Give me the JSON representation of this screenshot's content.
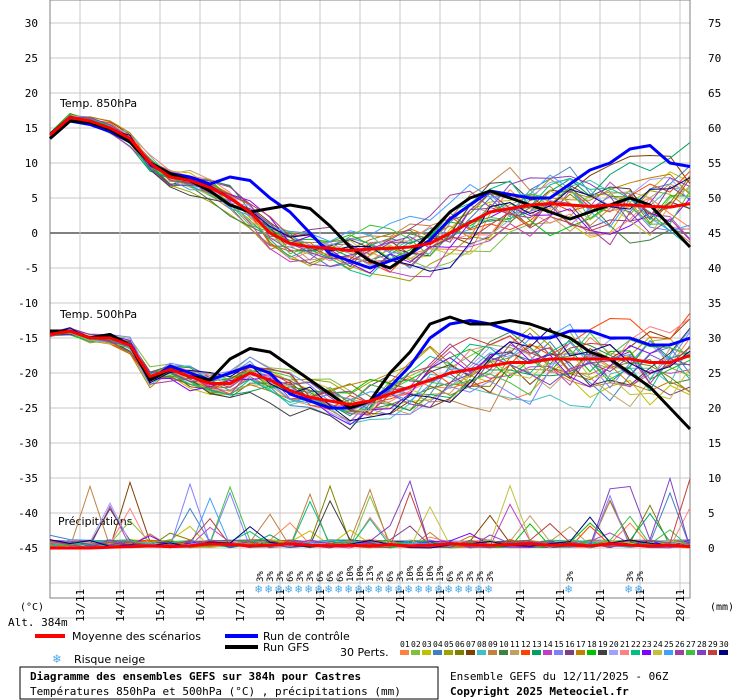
{
  "chart_data": {
    "type": "line",
    "title": "Diagramme des ensembles GEFS sur 384h pour Castres",
    "subtitle": "Températures 850hPa et 500hPa (°C) , précipitations (mm)",
    "left_axis_ticks": [
      30,
      25,
      20,
      15,
      10,
      5,
      0,
      -5,
      -10,
      -15,
      -20,
      -25,
      -30,
      -35,
      -40,
      -45
    ],
    "right_axis_ticks": [
      75,
      70,
      65,
      60,
      55,
      50,
      45,
      40,
      35,
      30,
      25,
      20,
      15,
      10,
      5,
      0
    ],
    "left_unit": "(°C)",
    "right_unit": "(mm)",
    "altitude": "Alt. 384m",
    "dates": [
      "13/11",
      "14/11",
      "15/11",
      "16/11",
      "17/11",
      "18/11",
      "19/11",
      "20/11",
      "21/11",
      "22/11",
      "23/11",
      "24/11",
      "25/11",
      "26/11",
      "27/11",
      "28/11"
    ],
    "panels": {
      "t850": {
        "label": "Temp. 850hPa"
      },
      "t500": {
        "label": "Temp. 500hPa"
      },
      "precip": {
        "label": "Précipitations"
      }
    },
    "time_hours": [
      0,
      384
    ],
    "series": [
      {
        "name": "Moyenne des scénarios 850hPa",
        "color": "#ff0000",
        "x": [
          0,
          12,
          24,
          36,
          48,
          60,
          72,
          84,
          96,
          108,
          120,
          132,
          144,
          156,
          168,
          180,
          192,
          204,
          216,
          228,
          240,
          252,
          264,
          276,
          288,
          300,
          312,
          324,
          336,
          348,
          360,
          372,
          384
        ],
        "values": [
          14,
          16.5,
          16,
          15,
          13.5,
          10,
          8,
          7.5,
          6.5,
          5,
          3,
          0,
          -1.5,
          -2,
          -2.2,
          -2.5,
          -2.3,
          -2.2,
          -2,
          -1.5,
          0,
          1.5,
          3,
          3.5,
          4,
          4.2,
          4,
          3.8,
          4,
          4,
          3.8,
          3.7,
          4.2
        ]
      },
      {
        "name": "Run de contrôle 850hPa",
        "color": "#0000ff",
        "x": [
          0,
          12,
          24,
          36,
          48,
          60,
          72,
          84,
          96,
          108,
          120,
          132,
          144,
          156,
          168,
          180,
          192,
          204,
          216,
          228,
          240,
          252,
          264,
          276,
          288,
          300,
          312,
          324,
          336,
          348,
          360,
          372,
          384
        ],
        "values": [
          13.5,
          16,
          15.5,
          14.5,
          13,
          10,
          8.5,
          8,
          7,
          8,
          7.5,
          5,
          3,
          0,
          -3,
          -4,
          -5,
          -4,
          -3,
          -1,
          2,
          4,
          6,
          5.5,
          5,
          5,
          7,
          9,
          10,
          12,
          12.5,
          10,
          9.5
        ]
      },
      {
        "name": "Run GFS 850hPa",
        "color": "#000000",
        "x": [
          0,
          12,
          24,
          36,
          48,
          60,
          72,
          84,
          96,
          108,
          120,
          132,
          144,
          156,
          168,
          180,
          192,
          204,
          216,
          228,
          240,
          252,
          264,
          276,
          288,
          300,
          312,
          324,
          336,
          348,
          360,
          372,
          384
        ],
        "values": [
          13.5,
          16,
          15.8,
          14.8,
          13,
          10,
          8.5,
          7.5,
          6,
          4,
          3,
          3.5,
          4,
          3.5,
          1,
          -2,
          -4,
          -5,
          -3,
          0,
          3,
          5,
          6,
          5,
          4,
          3,
          2,
          3,
          4,
          5,
          4,
          1,
          -2
        ]
      },
      {
        "name": "Moyenne des scénarios 500hPa",
        "color": "#ff0000",
        "x": [
          0,
          12,
          24,
          36,
          48,
          60,
          72,
          84,
          96,
          108,
          120,
          132,
          144,
          156,
          168,
          180,
          192,
          204,
          216,
          228,
          240,
          252,
          264,
          276,
          288,
          300,
          312,
          324,
          336,
          348,
          360,
          372,
          384
        ],
        "values": [
          -14.5,
          -14,
          -15,
          -15,
          -16,
          -20.5,
          -19.5,
          -20.5,
          -21.5,
          -21.5,
          -20,
          -21,
          -22.5,
          -23.5,
          -24,
          -24.5,
          -24,
          -23,
          -22,
          -21,
          -20,
          -19.5,
          -19,
          -18.5,
          -18.5,
          -18,
          -18,
          -18,
          -18,
          -18,
          -18.5,
          -18.5,
          -17.5
        ]
      },
      {
        "name": "Run de contrôle 500hPa",
        "color": "#0000ff",
        "x": [
          0,
          12,
          24,
          36,
          48,
          60,
          72,
          84,
          96,
          108,
          120,
          132,
          144,
          156,
          168,
          180,
          192,
          204,
          216,
          228,
          240,
          252,
          264,
          276,
          288,
          300,
          312,
          324,
          336,
          348,
          360,
          372,
          384
        ],
        "values": [
          -14,
          -14,
          -15,
          -14.5,
          -16,
          -21,
          -19,
          -20,
          -21,
          -20,
          -19,
          -20,
          -23,
          -24,
          -25,
          -25,
          -24,
          -22,
          -19,
          -15,
          -13,
          -12.5,
          -13,
          -14,
          -15,
          -15,
          -14,
          -14,
          -15,
          -15,
          -16,
          -16,
          -15
        ]
      },
      {
        "name": "Run GFS 500hPa",
        "color": "#000000",
        "x": [
          0,
          12,
          24,
          36,
          48,
          60,
          72,
          84,
          96,
          108,
          120,
          132,
          144,
          156,
          168,
          180,
          192,
          204,
          216,
          228,
          240,
          252,
          264,
          276,
          288,
          300,
          312,
          324,
          336,
          348,
          360,
          372,
          384
        ],
        "values": [
          -14,
          -14,
          -15,
          -14.5,
          -16,
          -21,
          -19.5,
          -20.5,
          -21,
          -18,
          -16.5,
          -17,
          -19,
          -21,
          -23,
          -25,
          -24,
          -20,
          -17,
          -13,
          -12,
          -13,
          -13,
          -12.5,
          -13,
          -14,
          -15,
          -17,
          -18,
          -20,
          -22,
          -25,
          -28
        ]
      },
      {
        "name": "Moyenne des scénarios précip",
        "color": "#ff0000",
        "x": [
          0,
          12,
          24,
          36,
          48,
          60,
          72,
          84,
          96,
          108,
          120,
          132,
          144,
          156,
          168,
          180,
          192,
          204,
          216,
          228,
          240,
          252,
          264,
          276,
          288,
          300,
          312,
          324,
          336,
          348,
          360,
          372,
          384
        ],
        "values": [
          0,
          0,
          0,
          0.1,
          0.2,
          0.3,
          0.2,
          0.3,
          0.6,
          0.5,
          0.3,
          0.4,
          0.6,
          0.4,
          0.3,
          0.4,
          0.3,
          0.5,
          0.3,
          0.4,
          0.6,
          0.5,
          0.4,
          0.5,
          0.6,
          0.4,
          0.5,
          0.3,
          0.6,
          0.4,
          0.3,
          0.4,
          0.2
        ]
      }
    ],
    "snow_risk_marks": [
      "3%",
      "3%",
      "3%",
      "6%",
      "3%",
      "3%",
      "6%",
      "6%",
      "6%",
      "10%",
      "10%",
      "13%",
      "3%",
      "6%",
      "3%",
      "10%",
      "10%",
      "10%",
      "13%",
      "6%",
      "3%",
      "3%",
      "3%",
      "3%",
      "3%",
      "3%",
      "3%"
    ],
    "legend": {
      "mean": "Moyenne des scénarios",
      "control": "Run de contrôle",
      "gfs": "Run GFS",
      "snow": "Risque neige",
      "perts": "30 Perts.",
      "perts_numbers": [
        "01",
        "02",
        "03",
        "04",
        "05",
        "06",
        "07",
        "08",
        "09",
        "10",
        "11",
        "12",
        "13",
        "14",
        "15",
        "16",
        "17",
        "18",
        "19",
        "20",
        "21",
        "22",
        "23",
        "24",
        "25",
        "26",
        "27",
        "28",
        "29",
        "30"
      ],
      "perts_colors": [
        "#ff8040",
        "#80c040",
        "#c0c000",
        "#4080c0",
        "#a0a000",
        "#808000",
        "#804000",
        "#40c0c0",
        "#c08040",
        "#408040",
        "#c0a060",
        "#ff4000",
        "#00a060",
        "#c040c0",
        "#8080ff",
        "#804080",
        "#c08000",
        "#00c000",
        "#404040",
        "#a0a0ff",
        "#ff8080",
        "#00c080",
        "#8000ff",
        "#c0c040",
        "#40a0ff",
        "#a040a0",
        "#40c040",
        "#8040c0",
        "#c04040",
        "#000080"
      ]
    },
    "footer": {
      "ensemble": "Ensemble GEFS du 12/11/2025 - 06Z",
      "copyright": "Copyright 2025 Meteociel.fr"
    }
  }
}
